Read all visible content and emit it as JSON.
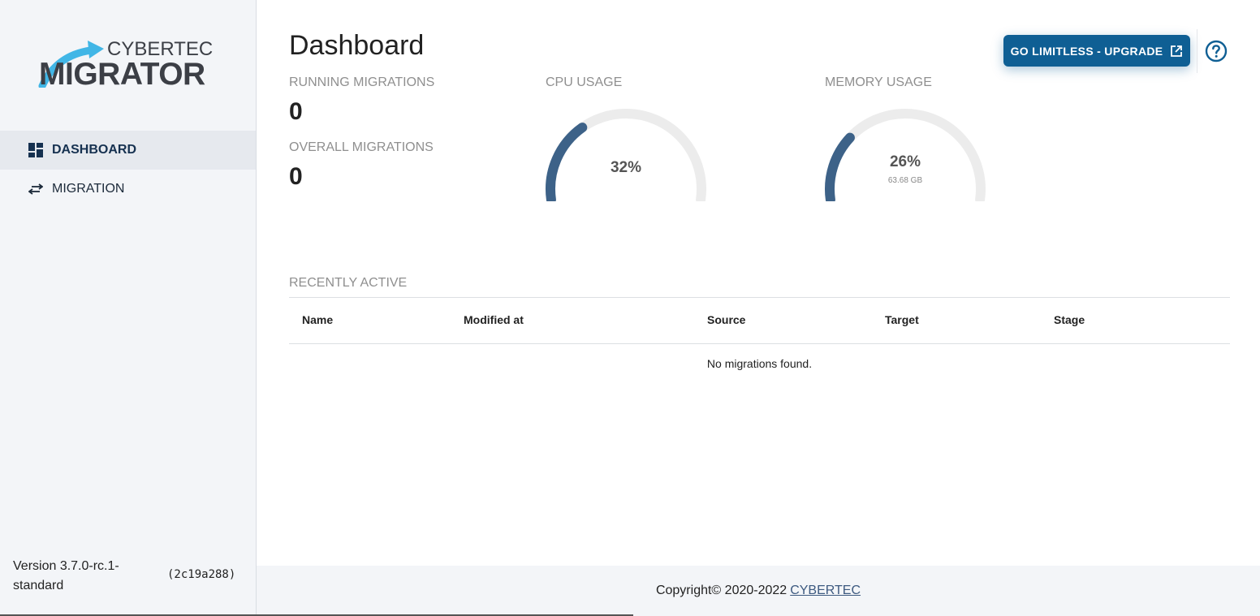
{
  "brand": {
    "logo_top": "CYBERTEC",
    "logo_bottom": "MIGRATOR"
  },
  "sidebar": {
    "items": [
      {
        "label": "DASHBOARD",
        "icon": "dashboard-icon",
        "active": true
      },
      {
        "label": "MIGRATION",
        "icon": "swap-arrows-icon",
        "active": false
      }
    ],
    "version": "Version 3.7.0-rc.1-standard",
    "commit": "(2c19a288)"
  },
  "header": {
    "title": "Dashboard",
    "upgrade_label": "GO LIMITLESS - UPGRADE",
    "upgrade_icon": "external-link-icon",
    "help_icon": "help-circle-icon"
  },
  "stats": {
    "running_label": "RUNNING MIGRATIONS",
    "running_value": "0",
    "overall_label": "OVERALL MIGRATIONS",
    "overall_value": "0"
  },
  "gauges": {
    "cpu": {
      "label": "CPU USAGE",
      "value_text": "32%",
      "fraction": 0.32
    },
    "memory": {
      "label": "MEMORY USAGE",
      "value_text": "26%",
      "sub": "63.68 GB",
      "fraction": 0.26
    }
  },
  "recent": {
    "label": "RECENTLY ACTIVE",
    "columns": [
      "Name",
      "Modified at",
      "Source",
      "Target",
      "Stage"
    ],
    "empty_text": "No migrations found."
  },
  "footer": {
    "copyright": "Copyright© 2020-2022",
    "link": "CYBERTEC"
  },
  "colors": {
    "primary": "#0f5f94",
    "gauge_fill": "#3d6288",
    "gauge_track": "#ececec"
  }
}
